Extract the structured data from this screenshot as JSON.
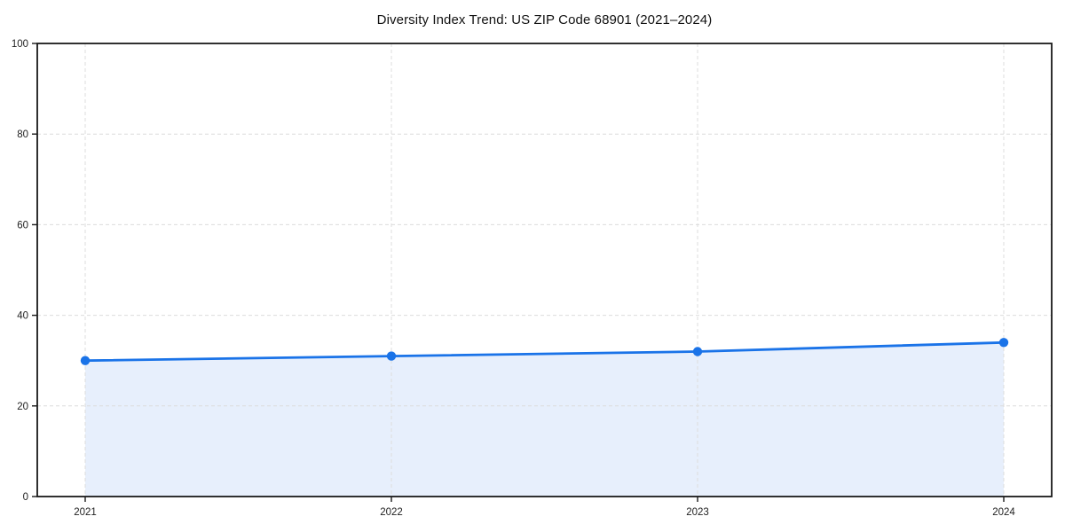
{
  "chart_data": {
    "type": "line",
    "title": "Diversity Index Trend: US ZIP Code 68901 (2021–2024)",
    "x": [
      "2021",
      "2022",
      "2023",
      "2024"
    ],
    "series": [
      {
        "name": "Diversity Index",
        "values": [
          30,
          31,
          32,
          34
        ]
      }
    ],
    "xlabel": "",
    "ylabel": "",
    "ylim": [
      0,
      100
    ],
    "yticks": [
      0,
      20,
      40,
      60,
      80,
      100
    ],
    "grid": "dashed-both-axes",
    "legend": "none",
    "area_fill_under_line": true,
    "markers": "circle",
    "colors": {
      "line": "#1a73e8",
      "marker": "#1a73e8",
      "area_fill": "#e7effc",
      "grid": "#dcdcdc",
      "spine": "#1a1a1a",
      "tick_label": "#222222",
      "title": "#111111",
      "background": "#ffffff"
    }
  }
}
